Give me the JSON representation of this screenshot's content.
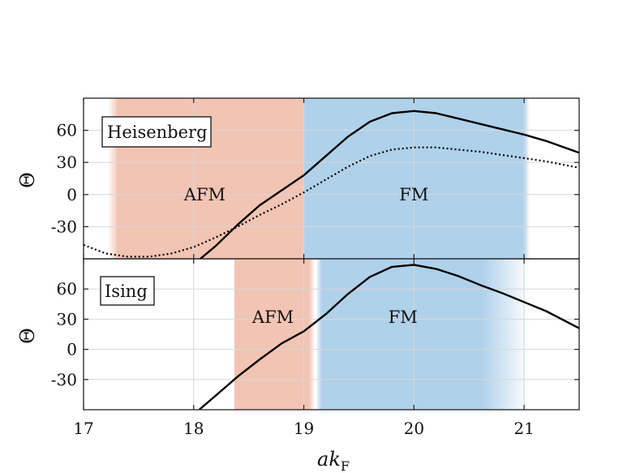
{
  "chart_data": [
    {
      "type": "line",
      "panel": "Heisenberg",
      "legend_label": "Heisenberg",
      "legend_position": "top-left",
      "ylabel": "Θ",
      "xlim": [
        17,
        21.5
      ],
      "ylim": [
        -60,
        90
      ],
      "yticks": [
        60,
        30,
        0,
        -30
      ],
      "ytick_labels": [
        "60",
        "30",
        "0",
        "-30"
      ],
      "grid": true,
      "regions": [
        {
          "label": "AFM",
          "x_start": 17.3,
          "x_end": 19.0,
          "color": "#f2c4b3",
          "label_x": 18.1,
          "label_y": 0
        },
        {
          "label": "FM",
          "x_start": 19.0,
          "x_end": 21.0,
          "color": "#b0d1ea",
          "label_x": 20.0,
          "label_y": 0
        }
      ],
      "region_fades": [
        {
          "color": "#f2c4b3",
          "x_start": 17.22,
          "x_end": 17.32
        },
        {
          "color": "#b0d1ea",
          "x_start": 21.0,
          "x_end": 21.05
        }
      ],
      "series": [
        {
          "style": "solid",
          "x": [
            18.06,
            18.2,
            18.4,
            18.6,
            18.8,
            19.0,
            19.2,
            19.4,
            19.6,
            19.8,
            20.0,
            20.2,
            20.4,
            20.6,
            20.8,
            21.0,
            21.2,
            21.5
          ],
          "y": [
            -60,
            -48,
            -28,
            -10,
            4,
            18,
            36,
            54,
            68,
            76,
            78,
            76,
            71,
            66,
            61,
            56,
            50,
            39
          ]
        },
        {
          "style": "dotted",
          "x": [
            17.0,
            17.2,
            17.4,
            17.6,
            17.8,
            18.0,
            18.2,
            18.4,
            18.6,
            18.8,
            19.0,
            19.2,
            19.4,
            19.6,
            19.8,
            20.0,
            20.2,
            20.4,
            20.6,
            20.8,
            21.0,
            21.2,
            21.5
          ],
          "y": [
            -47,
            -55,
            -58,
            -58,
            -55,
            -49,
            -40,
            -30,
            -19,
            -9,
            2,
            14,
            26,
            36,
            42,
            44,
            44,
            42,
            40,
            37,
            34,
            31,
            25
          ]
        }
      ]
    },
    {
      "type": "line",
      "panel": "Ising",
      "legend_label": "Ising",
      "legend_position": "top-left",
      "ylabel": "Θ",
      "xlabel": "ak_F",
      "xlim": [
        17,
        21.5
      ],
      "ylim": [
        -60,
        90
      ],
      "yticks": [
        60,
        30,
        0,
        -30
      ],
      "ytick_labels": [
        "60",
        "30",
        "0",
        "-30"
      ],
      "xticks": [
        17,
        18,
        19,
        20,
        21
      ],
      "xtick_labels": [
        "17",
        "18",
        "19",
        "20",
        "21"
      ],
      "grid": true,
      "regions": [
        {
          "label": "AFM",
          "x_start": 18.37,
          "x_end": 19.05,
          "color": "#f2c4b3",
          "label_x": 18.72,
          "label_y": 32
        },
        {
          "label": "FM",
          "x_start": 19.16,
          "x_end": 20.62,
          "color": "#b0d1ea",
          "label_x": 19.9,
          "label_y": 32
        }
      ],
      "region_fades": [
        {
          "color": "#f2c4b3",
          "x_start": 19.05,
          "x_end": 19.1
        },
        {
          "color": "#b0d1ea",
          "x_start": 19.11,
          "x_end": 19.16
        },
        {
          "color": "#b0d1ea",
          "x_start": 20.62,
          "x_end": 21.05
        }
      ],
      "series": [
        {
          "style": "solid",
          "x": [
            18.05,
            18.2,
            18.4,
            18.6,
            18.8,
            19.0,
            19.2,
            19.4,
            19.6,
            19.8,
            20.0,
            20.2,
            20.4,
            20.6,
            20.8,
            21.0,
            21.2,
            21.5
          ],
          "y": [
            -60,
            -46,
            -27,
            -10,
            6,
            18,
            35,
            55,
            72,
            82,
            84,
            80,
            73,
            64,
            56,
            47,
            38,
            21
          ]
        }
      ]
    }
  ]
}
